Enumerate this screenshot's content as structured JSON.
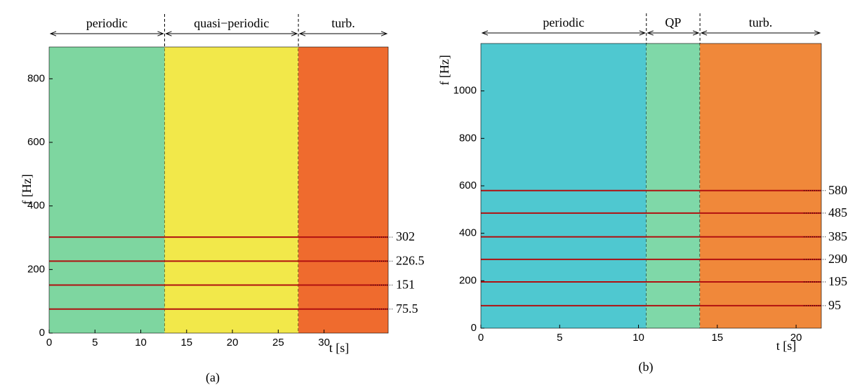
{
  "chart_data": [
    {
      "type": "spectrogram",
      "caption": "(a)",
      "xlabel": "t [s]",
      "ylabel": "f [Hz]",
      "xlim": [
        0,
        37
      ],
      "ylim": [
        0,
        900
      ],
      "xticks": [
        0,
        5,
        10,
        15,
        20,
        25,
        30
      ],
      "yticks": [
        0,
        200,
        400,
        600,
        800
      ],
      "regions": [
        {
          "label": "periodic",
          "start": 0,
          "end": 12.6,
          "color": "#7ed6a0"
        },
        {
          "label": "quasi−periodic",
          "start": 12.6,
          "end": 27.2,
          "color": "#f2e84a"
        },
        {
          "label": "turb.",
          "start": 27.2,
          "end": 37,
          "color": "#ef6b2e"
        }
      ],
      "lines": [
        302,
        226.5,
        151,
        75.5
      ]
    },
    {
      "type": "spectrogram",
      "caption": "(b)",
      "xlabel": "t [s]",
      "ylabel": "f [Hz]",
      "xlim": [
        0,
        21.6
      ],
      "ylim": [
        0,
        1200
      ],
      "xticks": [
        0,
        5,
        10,
        15,
        20
      ],
      "yticks": [
        0,
        200,
        400,
        600,
        800,
        1000
      ],
      "regions": [
        {
          "label": "periodic",
          "start": 0,
          "end": 10.5,
          "color": "#4fc8d0"
        },
        {
          "label": "QP",
          "start": 10.5,
          "end": 13.9,
          "color": "#7fd8a8"
        },
        {
          "label": "turb.",
          "start": 13.9,
          "end": 21.6,
          "color": "#f0883a"
        }
      ],
      "lines": [
        580,
        485,
        385,
        290,
        195,
        95
      ]
    }
  ]
}
